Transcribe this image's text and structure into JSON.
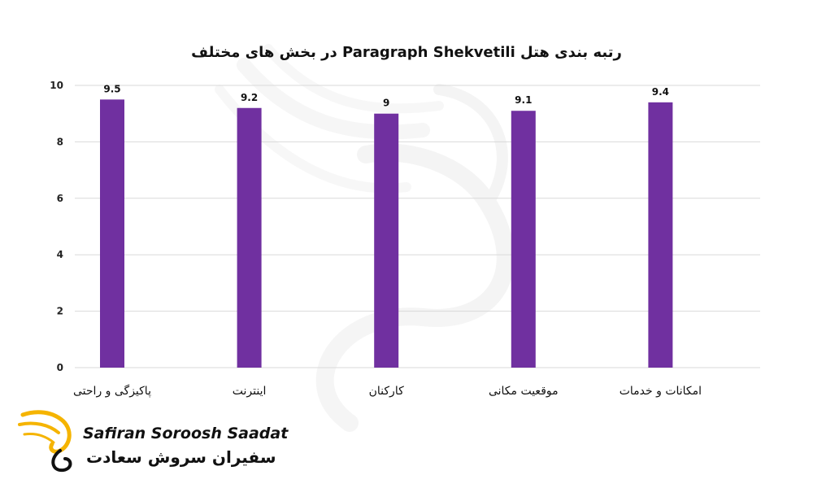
{
  "chart_data": {
    "type": "bar",
    "title": "رتبه بندی هتل Paragraph Shekvetili در بخش های مختلف",
    "categories": [
      "پاکیزگی و راحتی",
      "اینترنت",
      "کارکنان",
      "موقعیت مکانی",
      "امکانات و خدمات"
    ],
    "values": [
      9.5,
      9.2,
      9,
      9.1,
      9.4
    ],
    "value_labels": [
      "9.5",
      "9.2",
      "9",
      "9.1",
      "9.4"
    ],
    "ylim": [
      0,
      10
    ],
    "yticks": [
      0,
      2,
      4,
      6,
      8,
      10
    ],
    "grid": true,
    "legend": "none",
    "bar_color": "#7030a0"
  },
  "logo": {
    "text_en": "Safiran Soroosh Saadat",
    "text_fa": "سفیران سروش سعادت",
    "color": "#f5b400"
  },
  "colors": {
    "gridline": "#d9d9d9",
    "watermark": "#ececec"
  }
}
